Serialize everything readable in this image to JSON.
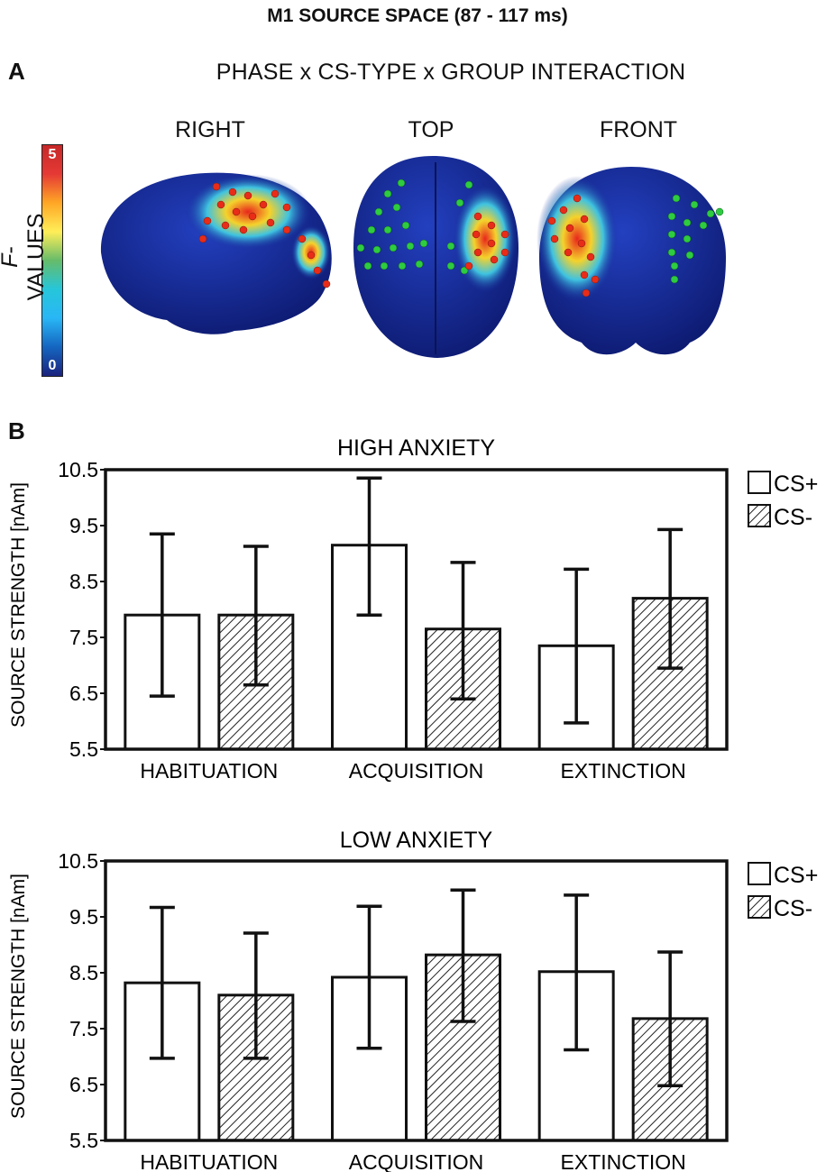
{
  "title": "M1 SOURCE SPACE (87 - 117 ms)",
  "panel_a": {
    "letter": "A",
    "subtitle": "PHASE x CS-TYPE x GROUP INTERACTION",
    "views": [
      "RIGHT",
      "TOP",
      "FRONT"
    ],
    "colorbar": {
      "label_italic": "F",
      "label_rest": "-VALUES",
      "max_label": "5",
      "min_label": "0",
      "stops": [
        "#1a237e",
        "#1565c0",
        "#29b6f6",
        "#26c6da",
        "#66bb6a",
        "#ffee58",
        "#ffa726",
        "#e53935",
        "#c62828"
      ]
    },
    "colors": {
      "brain_base": "#152a9a",
      "hot": "#e8261c",
      "warm": "#f5d22b",
      "green_dot": "#2ecc40",
      "red_dot": "#e82c18"
    }
  },
  "panel_b": {
    "letter": "B",
    "legend": [
      {
        "label": "CS+",
        "pattern": "solid-white"
      },
      {
        "label": "CS-",
        "pattern": "hatched"
      }
    ]
  },
  "chart_data": [
    {
      "type": "bar",
      "title": "HIGH ANXIETY",
      "ylabel": "SOURCE STRENGTH [nAm]",
      "xlabel": "",
      "ylim": [
        5.5,
        10.5
      ],
      "yticks": [
        "10.5",
        "9.5",
        "8.5",
        "7.5",
        "6.5",
        "5.5"
      ],
      "categories": [
        "HABITUATION",
        "ACQUISITION",
        "EXTINCTION"
      ],
      "series": [
        {
          "name": "CS+",
          "values": [
            7.9,
            9.15,
            7.35
          ],
          "err_low": [
            6.45,
            7.9,
            5.97
          ],
          "err_high": [
            9.35,
            10.35,
            8.72
          ]
        },
        {
          "name": "CS-",
          "values": [
            7.9,
            7.65,
            8.2
          ],
          "err_low": [
            6.65,
            6.4,
            6.95
          ],
          "err_high": [
            9.13,
            8.84,
            9.43
          ]
        }
      ]
    },
    {
      "type": "bar",
      "title": "LOW ANXIETY",
      "ylabel": "SOURCE STRENGTH [nAm]",
      "xlabel": "",
      "ylim": [
        5.5,
        10.5
      ],
      "yticks": [
        "10.5",
        "9.5",
        "8.5",
        "7.5",
        "6.5",
        "5.5"
      ],
      "categories": [
        "HABITUATION",
        "ACQUISITION",
        "EXTINCTION"
      ],
      "series": [
        {
          "name": "CS+",
          "values": [
            8.32,
            8.42,
            8.52
          ],
          "err_low": [
            6.97,
            7.15,
            7.12
          ],
          "err_high": [
            9.67,
            9.69,
            9.89
          ]
        },
        {
          "name": "CS-",
          "values": [
            8.1,
            8.82,
            7.68
          ],
          "err_low": [
            6.97,
            7.63,
            6.48
          ],
          "err_high": [
            9.21,
            9.98,
            8.87
          ]
        }
      ]
    }
  ]
}
